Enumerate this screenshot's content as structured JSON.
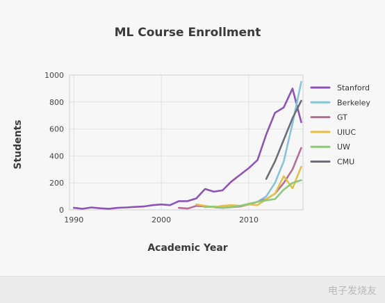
{
  "chart_data": {
    "type": "line",
    "title": "ML Course Enrollment",
    "xlabel": "Academic Year",
    "ylabel": "Students",
    "xlim": [
      1989.5,
      2016.2
    ],
    "ylim": [
      0,
      1000
    ],
    "xticks": [
      1990,
      2000,
      2010
    ],
    "yticks": [
      0,
      200,
      400,
      600,
      800,
      1000
    ],
    "grid": true,
    "legend_position": "right",
    "series": [
      {
        "name": "Stanford",
        "color": "#8e54b5",
        "x": [
          1990,
          1991,
          1992,
          1993,
          1994,
          1995,
          1996,
          1997,
          1998,
          1999,
          2000,
          2001,
          2002,
          2003,
          2004,
          2005,
          2006,
          2007,
          2008,
          2009,
          2010,
          2011,
          2012,
          2013,
          2014,
          2015,
          2016
        ],
        "y": [
          15,
          8,
          18,
          12,
          8,
          15,
          18,
          22,
          25,
          35,
          40,
          35,
          65,
          65,
          85,
          155,
          135,
          145,
          210,
          260,
          310,
          370,
          560,
          720,
          760,
          900,
          650
        ]
      },
      {
        "name": "Berkeley",
        "color": "#86c5d8",
        "x": [
          2011,
          2012,
          2013,
          2014,
          2015,
          2016
        ],
        "y": [
          60,
          100,
          200,
          360,
          640,
          950
        ]
      },
      {
        "name": "GT",
        "color": "#b56d99",
        "x": [
          2002,
          2003,
          2004,
          2005,
          2006,
          2007,
          2008,
          2009,
          2010,
          2011,
          2012,
          2013,
          2014,
          2015,
          2016
        ],
        "y": [
          15,
          10,
          30,
          25,
          20,
          15,
          20,
          25,
          40,
          60,
          80,
          120,
          200,
          300,
          460
        ]
      },
      {
        "name": "UIUC",
        "color": "#e3c04a",
        "x": [
          2004,
          2005,
          2006,
          2007,
          2008,
          2009,
          2010,
          2011,
          2012,
          2013,
          2014,
          2015,
          2016
        ],
        "y": [
          40,
          30,
          20,
          30,
          35,
          30,
          40,
          35,
          80,
          120,
          250,
          160,
          320
        ]
      },
      {
        "name": "UW",
        "color": "#8cc97a",
        "x": [
          2005,
          2006,
          2007,
          2008,
          2009,
          2010,
          2011,
          2012,
          2013,
          2014,
          2015,
          2016
        ],
        "y": [
          20,
          25,
          15,
          20,
          30,
          45,
          60,
          70,
          80,
          150,
          200,
          220
        ]
      },
      {
        "name": "CMU",
        "color": "#6d6d78",
        "x": [
          2012,
          2013,
          2014,
          2015,
          2016
        ],
        "y": [
          230,
          360,
          520,
          680,
          810
        ]
      }
    ]
  },
  "watermark": "电子发烧友"
}
